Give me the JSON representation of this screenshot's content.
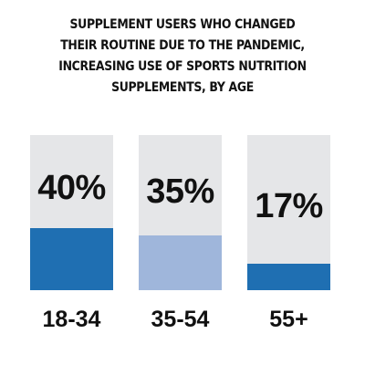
{
  "chart_data": {
    "type": "bar",
    "title_lines": [
      "SUPPLEMENT USERS WHO CHANGED",
      "THEIR ROUTINE DUE TO THE PANDEMIC,",
      "INCREASING USE OF SPORTS NUTRITION",
      "SUPPLEMENTS, BY AGE"
    ],
    "categories": [
      "18-34",
      "35-54",
      "55+"
    ],
    "values": [
      40,
      35,
      17
    ],
    "value_labels": [
      "40%",
      "35%",
      "17%"
    ],
    "colors": [
      "#1f6fb2",
      "#9fb6db",
      "#1f6fb2"
    ],
    "track_color": "#e5e6e8",
    "ylim": [
      0,
      100
    ]
  }
}
